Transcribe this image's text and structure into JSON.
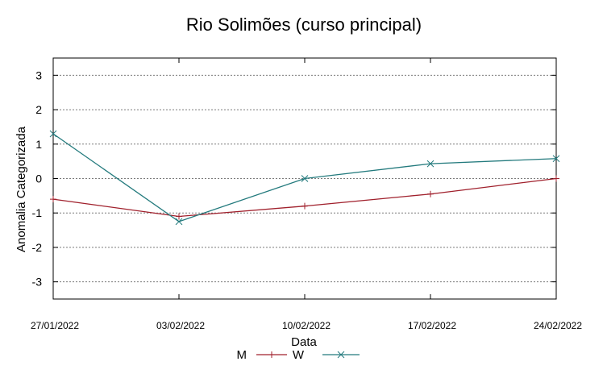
{
  "chart_data": {
    "type": "line",
    "title": "Rio Solimões (curso principal)",
    "xlabel": "Data",
    "ylabel": "Anomalia Categorizada",
    "categories": [
      "27/01/2022",
      "03/02/2022",
      "10/02/2022",
      "17/02/2022",
      "24/02/2022"
    ],
    "y_ticks": [
      "-3",
      "-2",
      "-1",
      "0",
      "1",
      "2",
      "3"
    ],
    "ylim": [
      -3.5,
      3.5
    ],
    "grid": true,
    "legend_position": "bottom-center",
    "series": [
      {
        "name": "M",
        "color": "#a0202c",
        "marker": "plus",
        "values": [
          -0.6,
          -1.1,
          -0.8,
          -0.45,
          0.0
        ]
      },
      {
        "name": "W",
        "color": "#237a7d",
        "marker": "cross",
        "values": [
          1.3,
          -1.25,
          0.0,
          0.43,
          0.58
        ]
      }
    ]
  }
}
